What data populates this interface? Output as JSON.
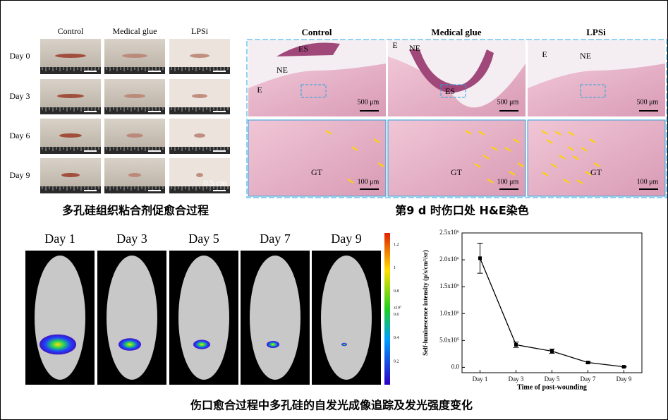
{
  "panel_a": {
    "columns": [
      "Control",
      "Medical glue",
      "LPSi"
    ],
    "rows": [
      "Day 0",
      "Day 3",
      "Day 6",
      "Day 9"
    ],
    "scale_label": "0.5 cm",
    "caption": "多孔硅组织粘合剂促愈合过程"
  },
  "panel_b": {
    "columns": [
      "Control",
      "Medical glue",
      "LPSi"
    ],
    "tissue_labels": [
      [
        "ES",
        "NE",
        "E"
      ],
      [
        "E",
        "NE",
        "ES"
      ],
      [
        "E",
        "NE"
      ]
    ],
    "zoom_label": "GT",
    "scale_label": "500 μm",
    "zoom_scale_label": "100 μm",
    "caption": "第9 d 时伤口处 H&E染色"
  },
  "panel_c": {
    "days": [
      "Day 1",
      "Day 3",
      "Day 5",
      "Day 7",
      "Day 9"
    ],
    "colorbar_unit": "x10⁷",
    "colorbar_ticks": [
      1.2,
      1.0,
      0.8,
      0.6,
      0.4,
      0.2
    ],
    "caption": "伤口愈合过程中多孔硅的自发光成像追踪及发光强度变化"
  },
  "chart_data": {
    "type": "line",
    "x_label": "Time of post-wounding",
    "y_label": "Self-luminescence intensity (p/s/cm²/sr)",
    "categories": [
      "Day 1",
      "Day 3",
      "Day 5",
      "Day 7",
      "Day 9"
    ],
    "values": [
      2030000,
      420000,
      300000,
      90000,
      10000
    ],
    "errors": [
      280000,
      50000,
      40000,
      15000,
      5000
    ],
    "color": "#000000",
    "ylim": [
      -100000,
      2500000
    ],
    "yticks": [
      {
        "value": 0,
        "label": "0.0"
      },
      {
        "value": 500000,
        "label": "5.0x10⁵"
      },
      {
        "value": 1000000,
        "label": "1.0x10⁶"
      },
      {
        "value": 1500000,
        "label": "1.5x10⁶"
      },
      {
        "value": 2000000,
        "label": "2.0x10⁶"
      },
      {
        "value": 2500000,
        "label": "2.5x10⁶"
      }
    ]
  }
}
